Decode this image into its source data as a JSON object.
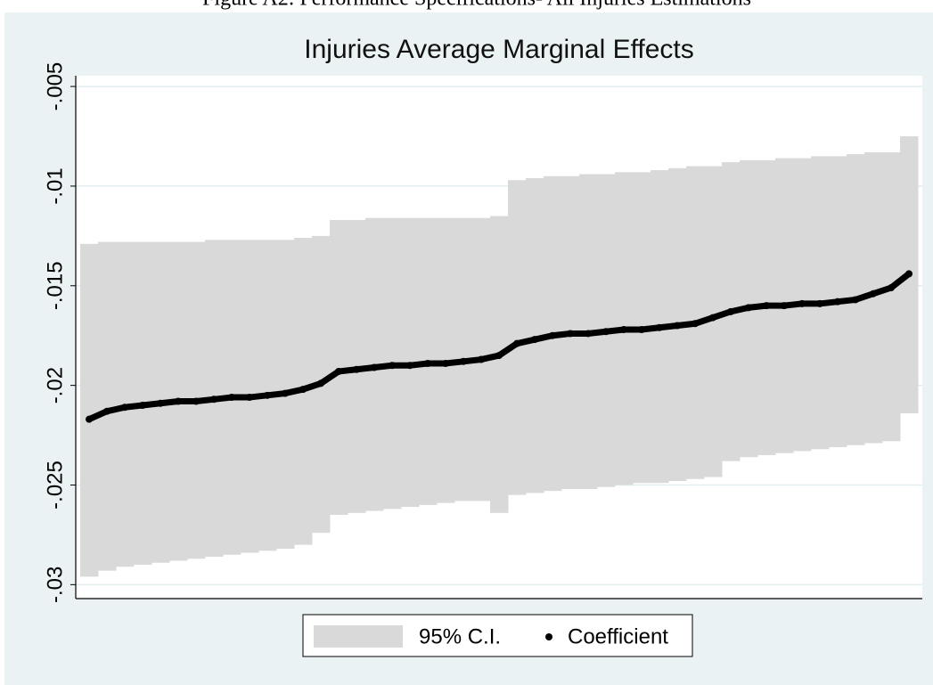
{
  "caption": "Figure A2: Performance Specifications- All Injuries Estimations",
  "chart_data": {
    "type": "scatter",
    "title": "Injuries Average Marginal Effects",
    "x": [
      1,
      2,
      3,
      4,
      5,
      6,
      7,
      8,
      9,
      10,
      11,
      12,
      13,
      14,
      15,
      16,
      17,
      18,
      19,
      20,
      21,
      22,
      23,
      24,
      25,
      26,
      27,
      28,
      29,
      30,
      31,
      32,
      33,
      34,
      35,
      36,
      37,
      38,
      39,
      40,
      41,
      42,
      43,
      44,
      45,
      46,
      47
    ],
    "xlim": [
      0.25,
      47.75
    ],
    "ylim": [
      -0.0307,
      -0.00446
    ],
    "yticks": [
      {
        "value": -0.005,
        "label": "-.005"
      },
      {
        "value": -0.01,
        "label": "-.01"
      },
      {
        "value": -0.015,
        "label": "-.015"
      },
      {
        "value": -0.02,
        "label": "-.02"
      },
      {
        "value": -0.025,
        "label": "-.025"
      },
      {
        "value": -0.03,
        "label": "-.03"
      }
    ],
    "grid": true,
    "legend": "bottom",
    "series": [
      {
        "name": "95% C.I.",
        "color": "#d9d9d9",
        "upper": [
          -0.0129,
          -0.0128,
          -0.0128,
          -0.0128,
          -0.0128,
          -0.0128,
          -0.0128,
          -0.0127,
          -0.0127,
          -0.0127,
          -0.0127,
          -0.0127,
          -0.0126,
          -0.0125,
          -0.0117,
          -0.0117,
          -0.0116,
          -0.0116,
          -0.0116,
          -0.0116,
          -0.0116,
          -0.0116,
          -0.0116,
          -0.0115,
          -0.0097,
          -0.0096,
          -0.0095,
          -0.0095,
          -0.0094,
          -0.0094,
          -0.0093,
          -0.0093,
          -0.0092,
          -0.0091,
          -0.009,
          -0.009,
          -0.0088,
          -0.0087,
          -0.0087,
          -0.0086,
          -0.0086,
          -0.0085,
          -0.0085,
          -0.0084,
          -0.0083,
          -0.0083,
          -0.0075
        ],
        "lower": [
          -0.0296,
          -0.0293,
          -0.0291,
          -0.029,
          -0.0289,
          -0.0288,
          -0.0287,
          -0.0286,
          -0.0285,
          -0.0284,
          -0.0283,
          -0.0282,
          -0.028,
          -0.0274,
          -0.0265,
          -0.0264,
          -0.0263,
          -0.0262,
          -0.0261,
          -0.026,
          -0.0259,
          -0.0258,
          -0.0258,
          -0.0264,
          -0.0255,
          -0.0254,
          -0.0253,
          -0.0252,
          -0.0252,
          -0.0251,
          -0.025,
          -0.0249,
          -0.0249,
          -0.0248,
          -0.0247,
          -0.0246,
          -0.0238,
          -0.0236,
          -0.0235,
          -0.0234,
          -0.0233,
          -0.0232,
          -0.0231,
          -0.023,
          -0.0229,
          -0.0228,
          -0.0214
        ]
      },
      {
        "name": "Coefficient",
        "color": "#000000",
        "values": [
          -0.0217,
          -0.0213,
          -0.0211,
          -0.021,
          -0.0209,
          -0.0208,
          -0.0208,
          -0.0207,
          -0.0206,
          -0.0206,
          -0.0205,
          -0.0204,
          -0.0202,
          -0.0199,
          -0.0193,
          -0.0192,
          -0.0191,
          -0.019,
          -0.019,
          -0.0189,
          -0.0189,
          -0.0188,
          -0.0187,
          -0.0185,
          -0.0179,
          -0.0177,
          -0.0175,
          -0.0174,
          -0.0174,
          -0.0173,
          -0.0172,
          -0.0172,
          -0.0171,
          -0.017,
          -0.0169,
          -0.0166,
          -0.0163,
          -0.0161,
          -0.016,
          -0.016,
          -0.0159,
          -0.0159,
          -0.0158,
          -0.0157,
          -0.0154,
          -0.0151,
          -0.0144
        ]
      }
    ]
  }
}
